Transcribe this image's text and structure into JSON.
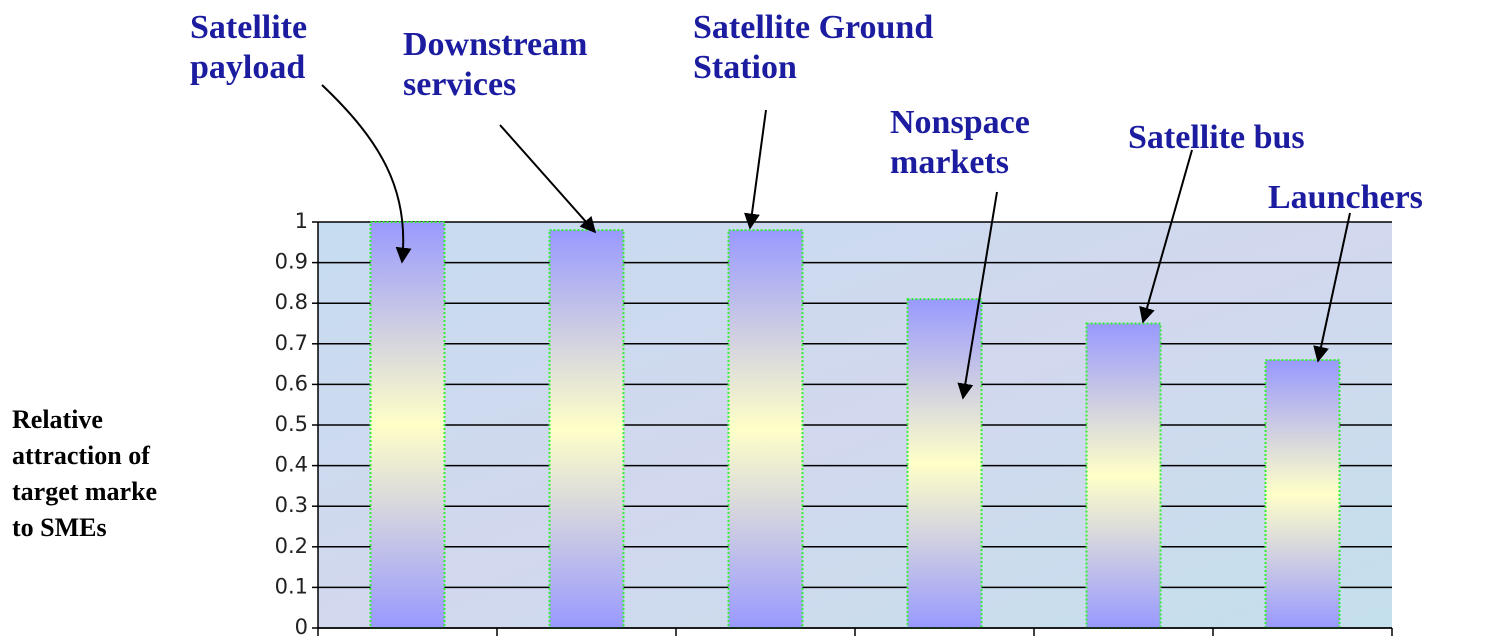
{
  "chart_data": {
    "type": "bar",
    "y_label": "Relative\nattraction of\ntarget marke\nto SMEs",
    "categories": [
      "Satellite\npayload",
      "Downstream\nservices",
      "Satellite Ground\nStation",
      "Nonspace\nmarkets",
      "Satellite bus",
      "Launchers"
    ],
    "values": [
      1,
      0.98,
      0.98,
      0.81,
      0.75,
      0.66
    ],
    "color": "#9999ff",
    "ylim": [
      0,
      1
    ],
    "yticks": [
      0,
      0.1,
      0.2,
      0.3,
      0.4,
      0.5,
      0.6,
      0.7,
      0.8,
      0.9,
      1
    ],
    "grid": true
  }
}
